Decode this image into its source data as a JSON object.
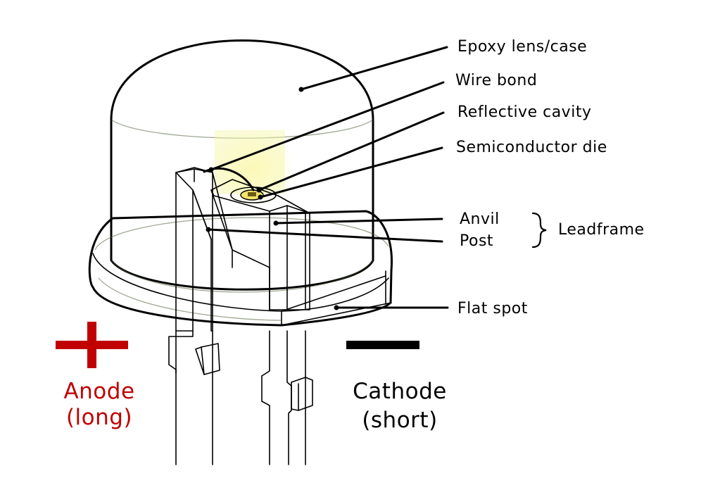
{
  "labels": {
    "epoxy": "Epoxy lens/case",
    "wire_bond": "Wire bond",
    "reflective_cavity": "Reflective cavity",
    "semiconductor_die": "Semiconductor die",
    "anvil": "Anvil",
    "post": "Post",
    "leadframe": "Leadframe",
    "flat_spot": "Flat spot"
  },
  "terminals": {
    "anode_line1": "Anode",
    "anode_line2": "(long)",
    "cathode_line1": "Cathode",
    "cathode_line2": "(short)"
  },
  "colors": {
    "epoxy_fill": "#cdefad",
    "anode": "#c00000",
    "cathode": "#000000",
    "die_glow": "#f3e36b"
  },
  "icons": {
    "anode_sign": "plus-sign-icon",
    "cathode_sign": "minus-sign-icon"
  }
}
